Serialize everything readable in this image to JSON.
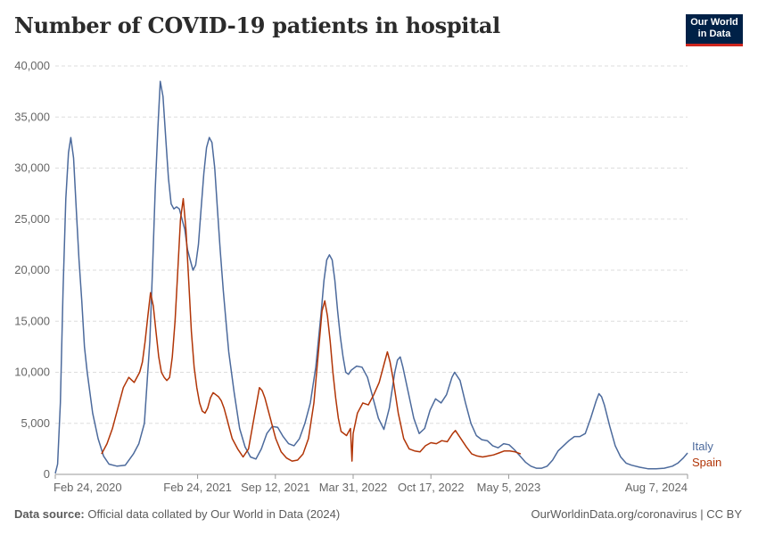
{
  "header": {
    "title": "Number of COVID-19 patients in hospital",
    "logo_line1": "Our World",
    "logo_line2": "in Data"
  },
  "footer": {
    "source_label": "Data source:",
    "source_text": "Official data collated by Our World in Data (2024)",
    "link_text": "OurWorldinData.org/coronavirus",
    "license_text": "| CC BY"
  },
  "colors": {
    "italy": "#4c6a9c",
    "spain": "#b13507",
    "grid": "#dddddd",
    "axis": "#999999"
  },
  "chart_data": {
    "type": "line",
    "title": "Number of COVID-19 patients in hospital",
    "xlabel": "",
    "ylabel": "",
    "ylim": [
      0,
      40000
    ],
    "xlim": [
      "2020-02-24",
      "2024-08-07"
    ],
    "grid": "horizontal dashed",
    "legend": "right, inline at line ends",
    "y_ticks": [
      0,
      5000,
      10000,
      15000,
      20000,
      25000,
      30000,
      35000,
      40000
    ],
    "y_tick_labels": [
      "0",
      "5,000",
      "10,000",
      "15,000",
      "20,000",
      "25,000",
      "30,000",
      "35,000",
      "40,000"
    ],
    "x_ticks": [
      "2020-02-24",
      "2021-02-24",
      "2021-09-12",
      "2022-03-31",
      "2022-10-17",
      "2023-05-05",
      "2024-08-07"
    ],
    "x_tick_labels": [
      "Feb 24, 2020",
      "Feb 24, 2021",
      "Sep 12, 2021",
      "Mar 31, 2022",
      "Oct 17, 2022",
      "May 5, 2023",
      "Aug 7, 2024"
    ],
    "series": [
      {
        "name": "Italy",
        "color": "#4c6a9c",
        "points": [
          [
            "2020-02-24",
            100
          ],
          [
            "2020-03-01",
            1000
          ],
          [
            "2020-03-08",
            7000
          ],
          [
            "2020-03-15",
            18000
          ],
          [
            "2020-03-22",
            27000
          ],
          [
            "2020-03-29",
            31500
          ],
          [
            "2020-04-04",
            33000
          ],
          [
            "2020-04-11",
            31000
          ],
          [
            "2020-04-18",
            26000
          ],
          [
            "2020-04-25",
            21000
          ],
          [
            "2020-05-02",
            17000
          ],
          [
            "2020-05-09",
            12500
          ],
          [
            "2020-05-16",
            10000
          ],
          [
            "2020-05-30",
            6000
          ],
          [
            "2020-06-13",
            3500
          ],
          [
            "2020-06-27",
            1800
          ],
          [
            "2020-07-11",
            1000
          ],
          [
            "2020-08-01",
            800
          ],
          [
            "2020-08-22",
            900
          ],
          [
            "2020-09-12",
            2000
          ],
          [
            "2020-09-26",
            3000
          ],
          [
            "2020-10-10",
            5000
          ],
          [
            "2020-10-24",
            13000
          ],
          [
            "2020-10-31",
            20000
          ],
          [
            "2020-11-07",
            28000
          ],
          [
            "2020-11-14",
            34000
          ],
          [
            "2020-11-20",
            38500
          ],
          [
            "2020-11-27",
            37000
          ],
          [
            "2020-12-04",
            33000
          ],
          [
            "2020-12-11",
            29000
          ],
          [
            "2020-12-18",
            26500
          ],
          [
            "2020-12-25",
            26000
          ],
          [
            "2021-01-01",
            26200
          ],
          [
            "2021-01-08",
            26000
          ],
          [
            "2021-01-15",
            25000
          ],
          [
            "2021-01-22",
            24000
          ],
          [
            "2021-01-29",
            22000
          ],
          [
            "2021-02-05",
            21000
          ],
          [
            "2021-02-12",
            20000
          ],
          [
            "2021-02-19",
            20500
          ],
          [
            "2021-02-26",
            22500
          ],
          [
            "2021-03-05",
            26000
          ],
          [
            "2021-03-12",
            29500
          ],
          [
            "2021-03-19",
            32000
          ],
          [
            "2021-03-26",
            33000
          ],
          [
            "2021-04-02",
            32500
          ],
          [
            "2021-04-09",
            30000
          ],
          [
            "2021-04-16",
            26000
          ],
          [
            "2021-04-23",
            22000
          ],
          [
            "2021-05-01",
            18000
          ],
          [
            "2021-05-08",
            15000
          ],
          [
            "2021-05-15",
            12000
          ],
          [
            "2021-05-29",
            8000
          ],
          [
            "2021-06-12",
            4500
          ],
          [
            "2021-06-26",
            2700
          ],
          [
            "2021-07-10",
            1700
          ],
          [
            "2021-07-24",
            1500
          ],
          [
            "2021-08-07",
            2500
          ],
          [
            "2021-08-21",
            4000
          ],
          [
            "2021-09-04",
            4700
          ],
          [
            "2021-09-18",
            4600
          ],
          [
            "2021-10-02",
            3700
          ],
          [
            "2021-10-16",
            3000
          ],
          [
            "2021-10-30",
            2800
          ],
          [
            "2021-11-13",
            3500
          ],
          [
            "2021-11-27",
            5000
          ],
          [
            "2021-12-11",
            7000
          ],
          [
            "2021-12-25",
            10500
          ],
          [
            "2022-01-08",
            16000
          ],
          [
            "2022-01-15",
            19000
          ],
          [
            "2022-01-22",
            21000
          ],
          [
            "2022-01-29",
            21500
          ],
          [
            "2022-02-05",
            21000
          ],
          [
            "2022-02-12",
            19000
          ],
          [
            "2022-02-19",
            16000
          ],
          [
            "2022-02-26",
            13500
          ],
          [
            "2022-03-05",
            11500
          ],
          [
            "2022-03-12",
            10000
          ],
          [
            "2022-03-19",
            9800
          ],
          [
            "2022-03-26",
            10200
          ],
          [
            "2022-04-09",
            10600
          ],
          [
            "2022-04-23",
            10500
          ],
          [
            "2022-05-07",
            9500
          ],
          [
            "2022-05-21",
            7500
          ],
          [
            "2022-06-04",
            5500
          ],
          [
            "2022-06-18",
            4400
          ],
          [
            "2022-07-02",
            6500
          ],
          [
            "2022-07-16",
            10000
          ],
          [
            "2022-07-23",
            11200
          ],
          [
            "2022-07-30",
            11500
          ],
          [
            "2022-08-06",
            10500
          ],
          [
            "2022-08-20",
            8000
          ],
          [
            "2022-09-03",
            5500
          ],
          [
            "2022-09-17",
            4000
          ],
          [
            "2022-10-01",
            4500
          ],
          [
            "2022-10-15",
            6300
          ],
          [
            "2022-10-29",
            7400
          ],
          [
            "2022-11-12",
            7000
          ],
          [
            "2022-11-26",
            7800
          ],
          [
            "2022-12-10",
            9500
          ],
          [
            "2022-12-17",
            10000
          ],
          [
            "2022-12-31",
            9200
          ],
          [
            "2023-01-14",
            7000
          ],
          [
            "2023-01-28",
            5000
          ],
          [
            "2023-02-11",
            3800
          ],
          [
            "2023-02-25",
            3400
          ],
          [
            "2023-03-11",
            3300
          ],
          [
            "2023-03-25",
            2800
          ],
          [
            "2023-04-08",
            2600
          ],
          [
            "2023-04-22",
            3000
          ],
          [
            "2023-05-06",
            2900
          ],
          [
            "2023-05-20",
            2400
          ],
          [
            "2023-06-03",
            1800
          ],
          [
            "2023-06-17",
            1200
          ],
          [
            "2023-07-01",
            800
          ],
          [
            "2023-07-15",
            600
          ],
          [
            "2023-07-29",
            600
          ],
          [
            "2023-08-12",
            800
          ],
          [
            "2023-08-26",
            1400
          ],
          [
            "2023-09-09",
            2300
          ],
          [
            "2023-09-23",
            2800
          ],
          [
            "2023-10-07",
            3300
          ],
          [
            "2023-10-21",
            3700
          ],
          [
            "2023-11-04",
            3700
          ],
          [
            "2023-11-18",
            4000
          ],
          [
            "2023-12-02",
            5500
          ],
          [
            "2023-12-16",
            7200
          ],
          [
            "2023-12-23",
            7900
          ],
          [
            "2023-12-30",
            7600
          ],
          [
            "2024-01-06",
            6800
          ],
          [
            "2024-01-20",
            4700
          ],
          [
            "2024-02-03",
            2800
          ],
          [
            "2024-02-17",
            1700
          ],
          [
            "2024-03-02",
            1100
          ],
          [
            "2024-03-16",
            900
          ],
          [
            "2024-04-06",
            700
          ],
          [
            "2024-04-27",
            550
          ],
          [
            "2024-05-18",
            550
          ],
          [
            "2024-06-08",
            600
          ],
          [
            "2024-06-29",
            800
          ],
          [
            "2024-07-13",
            1100
          ],
          [
            "2024-07-27",
            1600
          ],
          [
            "2024-08-07",
            2100
          ]
        ]
      },
      {
        "name": "Spain",
        "color": "#b13507",
        "points": [
          [
            "2020-06-22",
            2000
          ],
          [
            "2020-07-06",
            3000
          ],
          [
            "2020-07-20",
            4500
          ],
          [
            "2020-08-03",
            6500
          ],
          [
            "2020-08-17",
            8500
          ],
          [
            "2020-08-31",
            9500
          ],
          [
            "2020-09-14",
            9000
          ],
          [
            "2020-09-28",
            10000
          ],
          [
            "2020-10-05",
            11000
          ],
          [
            "2020-10-12",
            13000
          ],
          [
            "2020-10-19",
            15500
          ],
          [
            "2020-10-26",
            17800
          ],
          [
            "2020-11-02",
            16500
          ],
          [
            "2020-11-09",
            14000
          ],
          [
            "2020-11-16",
            11500
          ],
          [
            "2020-11-23",
            10000
          ],
          [
            "2020-11-30",
            9500
          ],
          [
            "2020-12-07",
            9200
          ],
          [
            "2020-12-14",
            9500
          ],
          [
            "2020-12-21",
            11500
          ],
          [
            "2020-12-28",
            15000
          ],
          [
            "2021-01-04",
            20000
          ],
          [
            "2021-01-11",
            25000
          ],
          [
            "2021-01-18",
            27000
          ],
          [
            "2021-01-25",
            24000
          ],
          [
            "2021-02-01",
            19000
          ],
          [
            "2021-02-08",
            14000
          ],
          [
            "2021-02-15",
            10500
          ],
          [
            "2021-02-22",
            8500
          ],
          [
            "2021-03-01",
            7000
          ],
          [
            "2021-03-08",
            6200
          ],
          [
            "2021-03-15",
            6000
          ],
          [
            "2021-03-22",
            6500
          ],
          [
            "2021-03-29",
            7500
          ],
          [
            "2021-04-05",
            8000
          ],
          [
            "2021-04-12",
            7800
          ],
          [
            "2021-04-19",
            7600
          ],
          [
            "2021-04-26",
            7200
          ],
          [
            "2021-05-03",
            6500
          ],
          [
            "2021-05-10",
            5500
          ],
          [
            "2021-05-17",
            4500
          ],
          [
            "2021-05-24",
            3500
          ],
          [
            "2021-06-07",
            2500
          ],
          [
            "2021-06-21",
            1700
          ],
          [
            "2021-07-05",
            2500
          ],
          [
            "2021-07-19",
            5500
          ],
          [
            "2021-08-02",
            8500
          ],
          [
            "2021-08-09",
            8200
          ],
          [
            "2021-08-16",
            7500
          ],
          [
            "2021-08-30",
            5500
          ],
          [
            "2021-09-13",
            3500
          ],
          [
            "2021-09-27",
            2200
          ],
          [
            "2021-10-11",
            1600
          ],
          [
            "2021-10-25",
            1300
          ],
          [
            "2021-11-08",
            1400
          ],
          [
            "2021-11-22",
            2000
          ],
          [
            "2021-12-06",
            3500
          ],
          [
            "2021-12-20",
            7000
          ],
          [
            "2022-01-03",
            13000
          ],
          [
            "2022-01-10",
            16000
          ],
          [
            "2022-01-17",
            17000
          ],
          [
            "2022-01-24",
            15500
          ],
          [
            "2022-01-31",
            13000
          ],
          [
            "2022-02-07",
            10000
          ],
          [
            "2022-02-14",
            7500
          ],
          [
            "2022-02-21",
            5500
          ],
          [
            "2022-02-28",
            4200
          ],
          [
            "2022-03-14",
            3800
          ],
          [
            "2022-03-24",
            4500
          ],
          [
            "2022-03-28",
            1300
          ],
          [
            "2022-03-31",
            4000
          ],
          [
            "2022-04-11",
            6000
          ],
          [
            "2022-04-25",
            7000
          ],
          [
            "2022-05-09",
            6800
          ],
          [
            "2022-05-23",
            7800
          ],
          [
            "2022-06-06",
            9000
          ],
          [
            "2022-06-20",
            11000
          ],
          [
            "2022-06-27",
            12000
          ],
          [
            "2022-07-04",
            11000
          ],
          [
            "2022-07-11",
            9500
          ],
          [
            "2022-07-25",
            6000
          ],
          [
            "2022-08-08",
            3500
          ],
          [
            "2022-08-22",
            2500
          ],
          [
            "2022-09-05",
            2300
          ],
          [
            "2022-09-19",
            2200
          ],
          [
            "2022-10-03",
            2800
          ],
          [
            "2022-10-17",
            3100
          ],
          [
            "2022-10-31",
            3000
          ],
          [
            "2022-11-14",
            3300
          ],
          [
            "2022-11-28",
            3200
          ],
          [
            "2022-12-12",
            4000
          ],
          [
            "2022-12-19",
            4300
          ],
          [
            "2023-01-02",
            3500
          ],
          [
            "2023-01-16",
            2700
          ],
          [
            "2023-01-30",
            2000
          ],
          [
            "2023-02-13",
            1800
          ],
          [
            "2023-02-27",
            1700
          ],
          [
            "2023-03-13",
            1800
          ],
          [
            "2023-03-27",
            1900
          ],
          [
            "2023-04-10",
            2100
          ],
          [
            "2023-04-24",
            2300
          ],
          [
            "2023-05-08",
            2300
          ],
          [
            "2023-05-22",
            2200
          ],
          [
            "2023-06-05",
            2000
          ]
        ]
      }
    ]
  }
}
